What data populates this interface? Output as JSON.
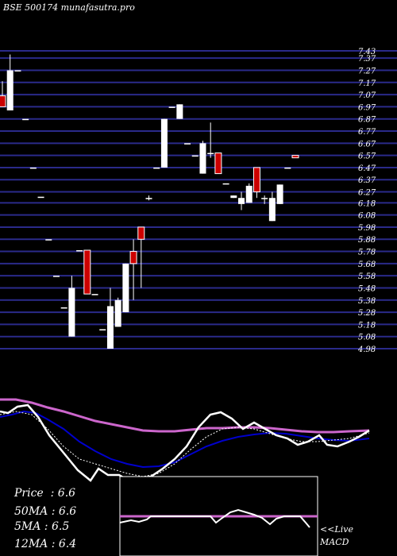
{
  "header": {
    "exchange": "BSE",
    "code": "500174",
    "site": "munafasutra.pro"
  },
  "stats": [
    {
      "label": "Price",
      "value": "6.6"
    },
    {
      "label": "50MA",
      "value": "6.6"
    },
    {
      "label": "5MA",
      "value": "6.5"
    },
    {
      "label": "12MA",
      "value": "6.4"
    }
  ],
  "live_label": "<<Live",
  "macd_label": "MACD",
  "colors": {
    "background": "#000000",
    "grid": "#2a2a8a",
    "up": "#ffffff",
    "down": "#cc0000",
    "ma50": "#cc66cc",
    "ma_fast": "#0000cc",
    "price_line": "#ffffff"
  },
  "chart_data": {
    "type": "candlestick",
    "y_ticks": [
      7.43,
      7.37,
      7.27,
      7.17,
      7.07,
      6.97,
      6.87,
      6.77,
      6.67,
      6.57,
      6.47,
      6.37,
      6.27,
      6.18,
      6.08,
      5.98,
      5.88,
      5.78,
      5.68,
      5.58,
      5.48,
      5.38,
      5.28,
      5.18,
      5.08,
      4.98
    ],
    "ylim": [
      4.98,
      7.43
    ],
    "candles": [
      {
        "o": 7.06,
        "h": 7.18,
        "l": 6.97,
        "c": 6.97
      },
      {
        "o": 6.94,
        "h": 7.4,
        "l": 6.94,
        "c": 7.27
      },
      {
        "o": 7.27,
        "h": 7.27,
        "l": 7.27,
        "c": 7.27
      },
      {
        "o": 6.87,
        "h": 6.87,
        "l": 6.87,
        "c": 6.87
      },
      {
        "o": 6.47,
        "h": 6.47,
        "l": 6.47,
        "c": 6.47
      },
      {
        "o": 6.23,
        "h": 6.23,
        "l": 6.23,
        "c": 6.23
      },
      {
        "o": 5.88,
        "h": 5.88,
        "l": 5.88,
        "c": 5.88
      },
      {
        "o": 5.58,
        "h": 5.58,
        "l": 5.58,
        "c": 5.58
      },
      {
        "o": 5.32,
        "h": 5.32,
        "l": 5.32,
        "c": 5.32
      },
      {
        "o": 5.08,
        "h": 5.58,
        "l": 5.08,
        "c": 5.48
      },
      {
        "o": 5.79,
        "h": 5.79,
        "l": 5.79,
        "c": 5.79
      },
      {
        "o": 5.79,
        "h": 5.79,
        "l": 5.43,
        "c": 5.43
      },
      {
        "o": 5.43,
        "h": 5.43,
        "l": 5.43,
        "c": 5.43
      },
      {
        "o": 5.14,
        "h": 5.14,
        "l": 5.14,
        "c": 5.14
      },
      {
        "o": 4.98,
        "h": 5.48,
        "l": 4.98,
        "c": 5.33
      },
      {
        "o": 5.16,
        "h": 5.4,
        "l": 5.16,
        "c": 5.38
      },
      {
        "o": 5.28,
        "h": 5.68,
        "l": 5.28,
        "c": 5.68
      },
      {
        "o": 5.78,
        "h": 5.88,
        "l": 5.38,
        "c": 5.68
      },
      {
        "o": 5.98,
        "h": 5.98,
        "l": 5.48,
        "c": 5.88
      },
      {
        "o": 6.21,
        "h": 6.24,
        "l": 6.2,
        "c": 6.22
      },
      {
        "o": 6.47,
        "h": 6.47,
        "l": 6.47,
        "c": 6.47
      },
      {
        "o": 6.47,
        "h": 6.87,
        "l": 6.47,
        "c": 6.87
      },
      {
        "o": 6.97,
        "h": 6.97,
        "l": 6.97,
        "c": 6.97
      },
      {
        "o": 6.87,
        "h": 6.99,
        "l": 6.87,
        "c": 6.99
      },
      {
        "o": 6.67,
        "h": 6.67,
        "l": 6.67,
        "c": 6.67
      },
      {
        "o": 6.57,
        "h": 6.57,
        "l": 6.57,
        "c": 6.57
      },
      {
        "o": 6.42,
        "h": 6.69,
        "l": 6.42,
        "c": 6.67
      },
      {
        "o": 6.59,
        "h": 6.84,
        "l": 6.55,
        "c": 6.59
      },
      {
        "o": 6.59,
        "h": 6.59,
        "l": 6.42,
        "c": 6.42
      },
      {
        "o": 6.34,
        "h": 6.34,
        "l": 6.34,
        "c": 6.34
      },
      {
        "o": 6.22,
        "h": 6.24,
        "l": 6.22,
        "c": 6.24
      },
      {
        "o": 6.17,
        "h": 6.27,
        "l": 6.12,
        "c": 6.22
      },
      {
        "o": 6.18,
        "h": 6.34,
        "l": 6.18,
        "c": 6.32
      },
      {
        "o": 6.47,
        "h": 6.47,
        "l": 6.22,
        "c": 6.27
      },
      {
        "o": 6.22,
        "h": 6.24,
        "l": 6.17,
        "c": 6.22
      },
      {
        "o": 6.03,
        "h": 6.27,
        "l": 6.03,
        "c": 6.22
      },
      {
        "o": 6.17,
        "h": 6.33,
        "l": 6.17,
        "c": 6.33
      },
      {
        "o": 6.47,
        "h": 6.47,
        "l": 6.47,
        "c": 6.47
      },
      {
        "o": 6.57,
        "h": 6.57,
        "l": 6.55,
        "c": 6.55
      }
    ]
  }
}
